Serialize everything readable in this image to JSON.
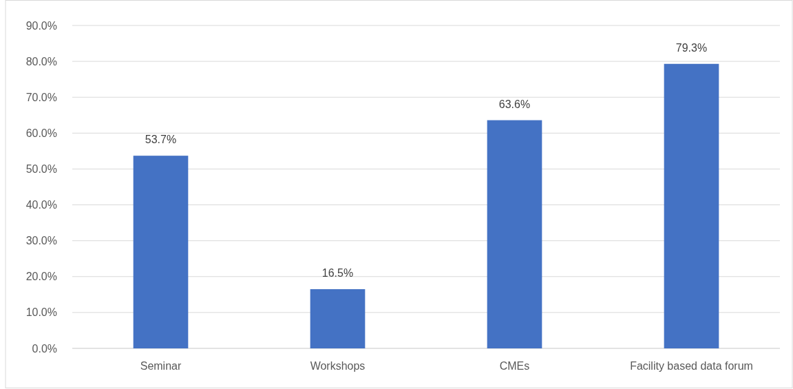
{
  "chart_data": {
    "type": "bar",
    "categories": [
      "Seminar",
      "Workshops",
      "CMEs",
      "Facility based data forum"
    ],
    "values": [
      53.7,
      16.5,
      63.6,
      79.3
    ],
    "value_labels": [
      "53.7%",
      "16.5%",
      "63.6%",
      "79.3%"
    ],
    "color": "#4472c4",
    "ylim": [
      0,
      90
    ],
    "yticks": [
      {
        "value": 0,
        "label": "0.0%"
      },
      {
        "value": 10,
        "label": "10.0%"
      },
      {
        "value": 20,
        "label": "20.0%"
      },
      {
        "value": 30,
        "label": "30.0%"
      },
      {
        "value": 40,
        "label": "40.0%"
      },
      {
        "value": 50,
        "label": "50.0%"
      },
      {
        "value": 60,
        "label": "60.0%"
      },
      {
        "value": 70,
        "label": "70.0%"
      },
      {
        "value": 80,
        "label": "80.0%"
      },
      {
        "value": 90,
        "label": "90.0%"
      }
    ],
    "grid": "y"
  }
}
